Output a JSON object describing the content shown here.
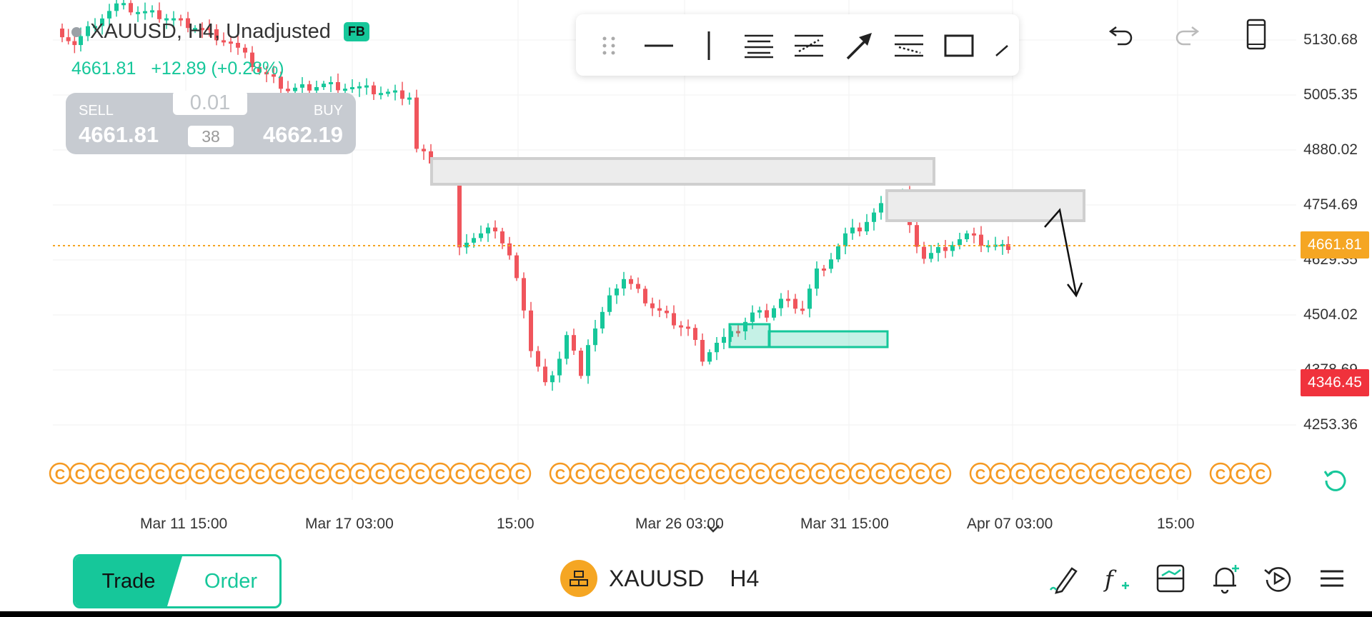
{
  "header": {
    "symbol_line": "XAUUSD, H4, Unadjusted",
    "badge": "FB",
    "last_price": "4661.81",
    "change": "+12.89 (+0.28%)"
  },
  "trade_panel": {
    "sell_label": "SELL",
    "sell_price": "4661.81",
    "buy_label": "BUY",
    "buy_price": "4662.19",
    "lot_size": "0.01",
    "spread": "38"
  },
  "drawing_toolbar": {
    "tools": [
      "drag-handle-icon",
      "horizontal-line-icon",
      "vertical-line-icon",
      "parallel-channel-icon",
      "fib-retracement-icon",
      "arrow-icon",
      "fib-channel-icon",
      "rectangle-icon",
      "trend-line-icon"
    ]
  },
  "top_actions": [
    "undo-icon",
    "redo-icon",
    "phone-layout-icon"
  ],
  "price_axis": {
    "labels": [
      "5130.68",
      "5005.35",
      "4880.02",
      "4754.69",
      "4629.35",
      "4504.02",
      "4378.69",
      "4253.36"
    ],
    "current_tag": "4661.81",
    "low_tag": "4346.45"
  },
  "time_axis": {
    "labels": [
      "Mar 11 15:00",
      "Mar 17 03:00",
      "15:00",
      "Mar 26 03:00",
      "Mar 31 15:00",
      "Apr 07 03:00",
      "15:00"
    ]
  },
  "bottom_nav": {
    "trade_label": "Trade",
    "order_label": "Order",
    "symbol": "XAUUSD",
    "timeframe": "H4"
  },
  "colors": {
    "up": "#16c79a",
    "down": "#f0555c",
    "accent": "#16c79a",
    "current_price": "#f5a623",
    "low_price": "#f0323c",
    "event_marker": "#f59a23"
  },
  "event_marker_letter": "C"
}
